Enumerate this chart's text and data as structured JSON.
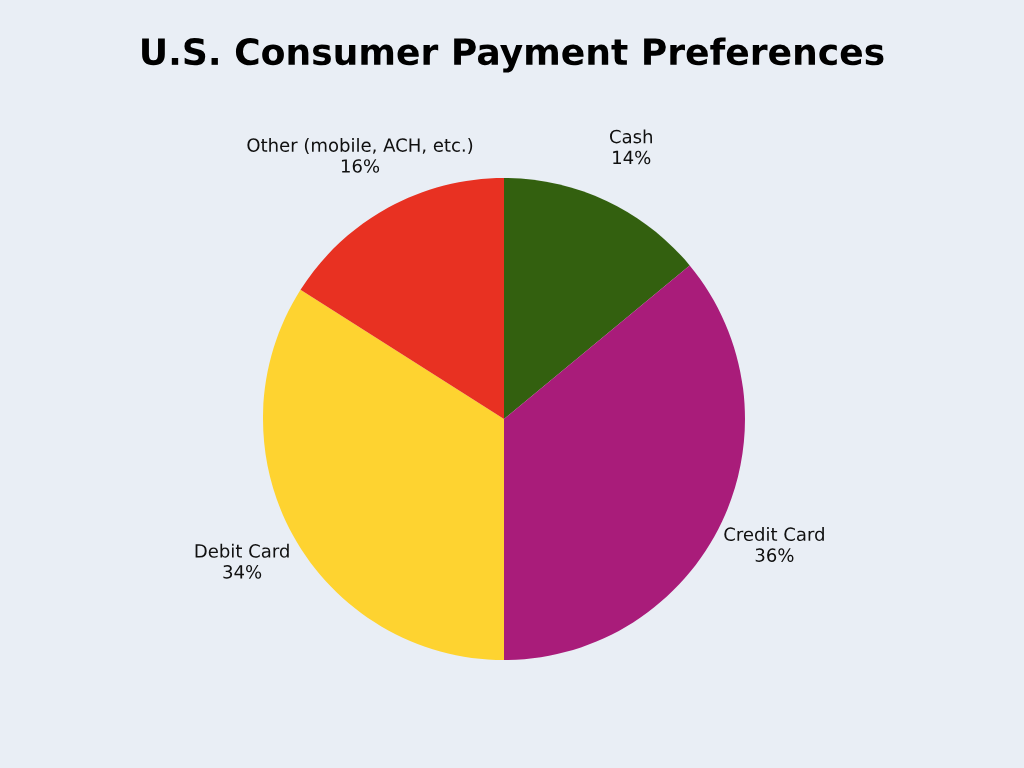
{
  "chart_data": {
    "type": "pie",
    "title": "U.S. Consumer Payment Preferences",
    "categories": [
      "Cash",
      "Credit Card",
      "Debit Card",
      "Other (mobile, ACH, etc.)"
    ],
    "values": [
      14,
      36,
      34,
      16
    ],
    "colors": [
      "#33600f",
      "#a91c7a",
      "#fed330",
      "#e83122"
    ],
    "value_labels": [
      "14%",
      "36%",
      "34%",
      "16%"
    ]
  }
}
